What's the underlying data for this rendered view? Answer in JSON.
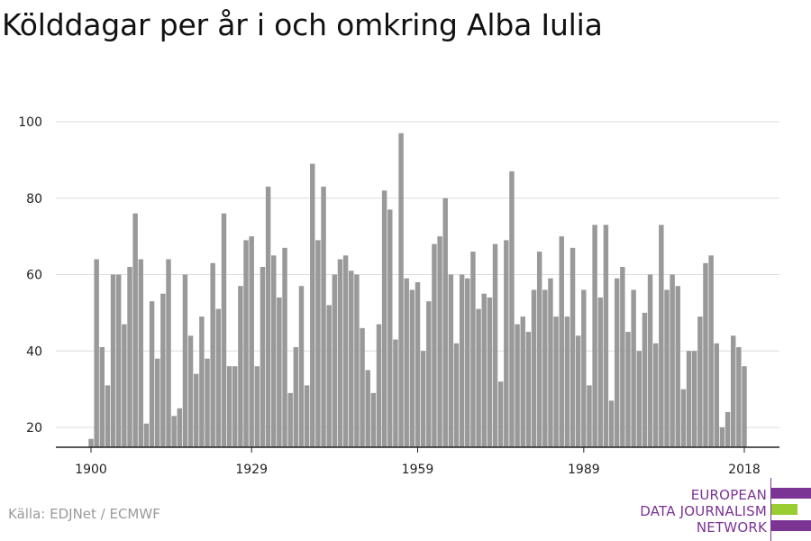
{
  "title": "Kölddagar per år i och omkring Alba Iulia",
  "source": "Källa: EDJNet / ECMWF",
  "logo": {
    "lines": [
      "EUROPEAN",
      "DATA JOURNALISM",
      "NETWORK"
    ],
    "purple": "#7b3394",
    "green": "#9acd32"
  },
  "colors": {
    "bar": "#999999",
    "grid": "#dddddd",
    "axis": "#222222"
  },
  "chart_data": {
    "type": "bar",
    "x_start": 1900,
    "x_end": 2018,
    "xticks": [
      1900,
      1929,
      1959,
      1989,
      2018
    ],
    "yticks": [
      20,
      40,
      60,
      80,
      100
    ],
    "ylim": [
      15,
      102
    ],
    "grid": true,
    "values": [
      17,
      64,
      41,
      31,
      60,
      60,
      47,
      62,
      76,
      64,
      21,
      53,
      38,
      55,
      64,
      23,
      25,
      60,
      44,
      34,
      49,
      38,
      63,
      51,
      76,
      36,
      36,
      57,
      69,
      70,
      36,
      62,
      83,
      65,
      54,
      67,
      29,
      41,
      57,
      31,
      89,
      69,
      83,
      52,
      60,
      64,
      65,
      61,
      60,
      46,
      35,
      29,
      47,
      82,
      77,
      43,
      97,
      59,
      56,
      58,
      40,
      53,
      68,
      70,
      80,
      60,
      42,
      60,
      59,
      66,
      51,
      55,
      54,
      68,
      32,
      69,
      87,
      47,
      49,
      45,
      56,
      66,
      56,
      59,
      49,
      70,
      49,
      67,
      44,
      56,
      31,
      73,
      54,
      73,
      27,
      59,
      62,
      45,
      56,
      40,
      50,
      60,
      42,
      73,
      56,
      60,
      57,
      30,
      40,
      40,
      49,
      63,
      65,
      42,
      20,
      24,
      44,
      41,
      36
    ]
  }
}
